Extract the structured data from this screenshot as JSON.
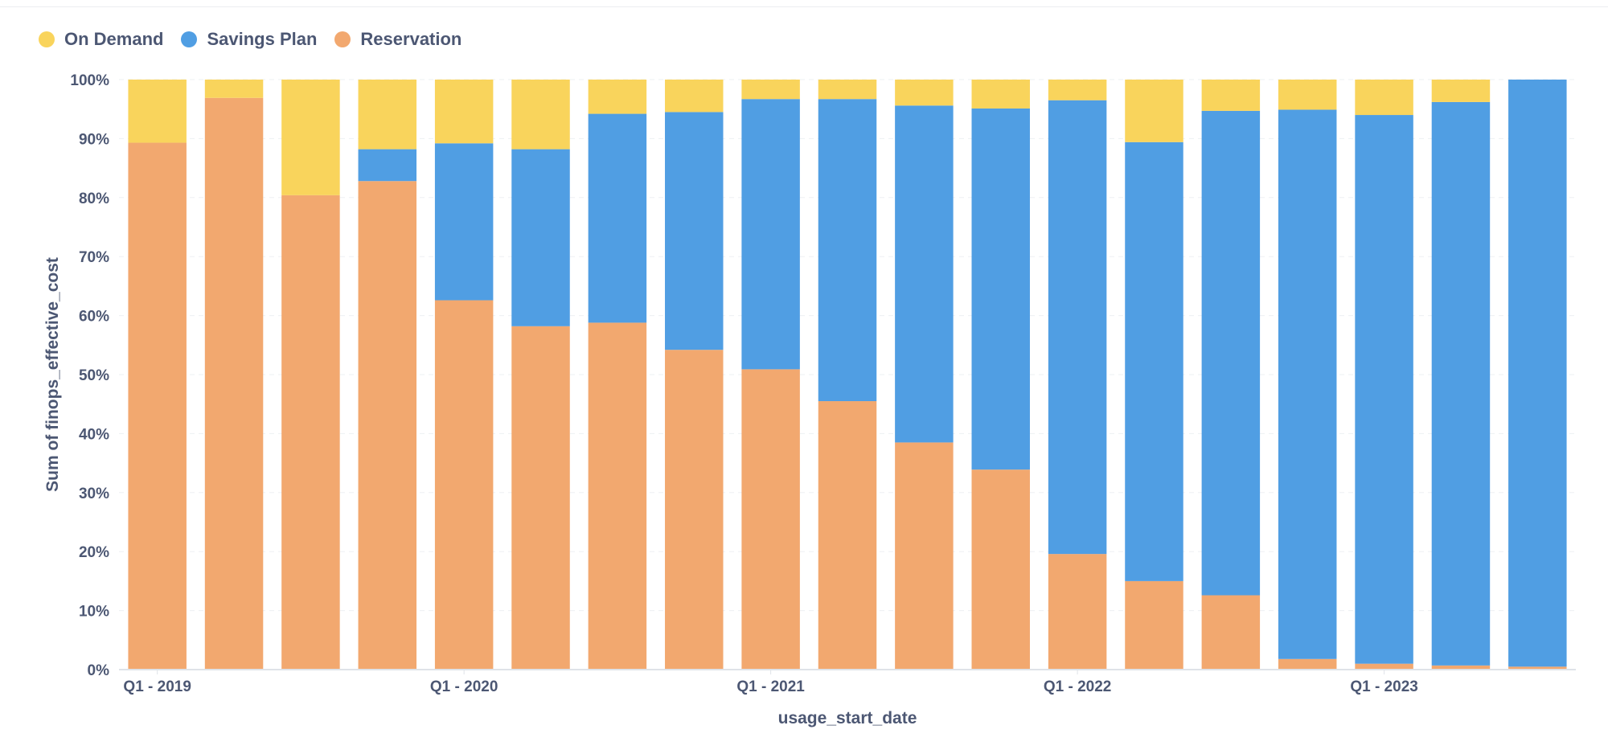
{
  "chart_data": {
    "type": "bar",
    "stacked": true,
    "normalized": true,
    "xlabel": "usage_start_date",
    "ylabel": "Sum of finops_effective_cost",
    "ylim": [
      0,
      100
    ],
    "y_ticks": [
      "0%",
      "10%",
      "20%",
      "30%",
      "40%",
      "50%",
      "60%",
      "70%",
      "80%",
      "90%",
      "100%"
    ],
    "x_tick_labels": [
      {
        "index": 0,
        "label": "Q1 - 2019"
      },
      {
        "index": 4,
        "label": "Q1 - 2020"
      },
      {
        "index": 8,
        "label": "Q1 - 2021"
      },
      {
        "index": 12,
        "label": "Q1 - 2022"
      },
      {
        "index": 16,
        "label": "Q1 - 2023"
      }
    ],
    "categories": [
      "Q1 2019",
      "Q2 2019",
      "Q3 2019",
      "Q4 2019",
      "Q1 2020",
      "Q2 2020",
      "Q3 2020",
      "Q4 2020",
      "Q1 2021",
      "Q2 2021",
      "Q3 2021",
      "Q4 2021",
      "Q1 2022",
      "Q2 2022",
      "Q3 2022",
      "Q4 2022",
      "Q1 2023",
      "Q2 2023",
      "Q3 2023"
    ],
    "grid": true,
    "legend_position": "top-left",
    "series": [
      {
        "name": "Reservation",
        "color": "#f2a86f",
        "values": [
          89.3,
          96.9,
          80.4,
          82.8,
          62.6,
          58.2,
          58.8,
          54.2,
          50.9,
          45.5,
          38.5,
          33.9,
          19.6,
          15.0,
          12.6,
          1.8,
          1.0,
          0.7,
          0.5
        ]
      },
      {
        "name": "Savings Plan",
        "color": "#509ee3",
        "values": [
          0,
          0,
          0,
          5.4,
          26.6,
          30.0,
          35.4,
          40.3,
          45.8,
          51.2,
          57.1,
          61.2,
          76.9,
          74.4,
          82.1,
          93.1,
          93.0,
          95.5,
          99.5
        ]
      },
      {
        "name": "On Demand",
        "color": "#f9d45c",
        "values": [
          10.7,
          3.1,
          19.6,
          11.8,
          10.8,
          11.8,
          5.8,
          5.5,
          3.3,
          3.3,
          4.4,
          4.9,
          3.5,
          10.6,
          5.3,
          5.1,
          6.0,
          3.8,
          0
        ]
      }
    ]
  },
  "legend": [
    {
      "label": "On Demand",
      "color": "#f9d45c"
    },
    {
      "label": "Savings Plan",
      "color": "#509ee3"
    },
    {
      "label": "Reservation",
      "color": "#f2a86f"
    }
  ]
}
